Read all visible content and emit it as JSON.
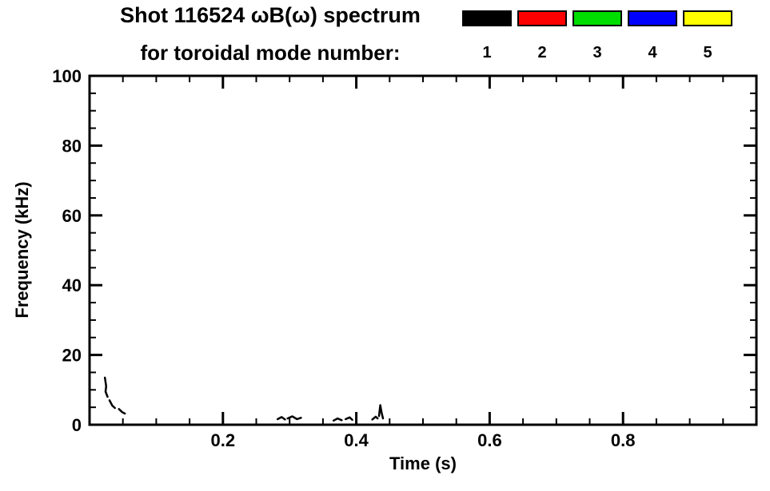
{
  "header": {
    "title": "Shot 116524 ωB(ω) spectrum",
    "subtitle": "for toroidal mode number:"
  },
  "chart_data": {
    "type": "scatter",
    "title": "Shot 116524 ωB(ω) spectrum",
    "subtitle": "for toroidal mode number:",
    "xlabel": "Time (s)",
    "ylabel": "Frequency (kHz)",
    "xlim": [
      0,
      1.0
    ],
    "ylim": [
      0,
      100
    ],
    "grid": false,
    "legend_position": "top",
    "x_ticks": {
      "values": [
        0.2,
        0.4,
        0.6,
        0.8
      ],
      "labels": [
        "0.2",
        "0.4",
        "0.6",
        "0.8"
      ],
      "minor_step": 0.05
    },
    "y_ticks": {
      "values": [
        0,
        20,
        40,
        60,
        80,
        100
      ],
      "labels": [
        "0",
        "20",
        "40",
        "60",
        "80",
        "100"
      ],
      "minor_step": 5
    },
    "series": [
      {
        "name": "1",
        "color": "#000000",
        "segments": [
          {
            "points": [
              [
                0.023,
                13.5
              ],
              [
                0.025,
                11.0
              ],
              [
                0.024,
                9.5
              ],
              [
                0.027,
                8.0
              ]
            ]
          },
          {
            "points": [
              [
                0.03,
                7.0
              ],
              [
                0.034,
                5.5
              ],
              [
                0.038,
                4.8
              ]
            ]
          },
          {
            "points": [
              [
                0.044,
                4.5
              ],
              [
                0.049,
                3.6
              ],
              [
                0.053,
                3.2
              ]
            ]
          },
          {
            "points": [
              [
                0.282,
                1.6
              ],
              [
                0.288,
                2.2
              ],
              [
                0.293,
                1.5
              ]
            ]
          },
          {
            "points": [
              [
                0.297,
                1.8
              ],
              [
                0.304,
                2.4
              ],
              [
                0.311,
                1.6
              ],
              [
                0.317,
                2.0
              ]
            ]
          },
          {
            "points": [
              [
                0.366,
                1.2
              ],
              [
                0.372,
                1.8
              ],
              [
                0.378,
                1.3
              ]
            ]
          },
          {
            "points": [
              [
                0.384,
                1.6
              ],
              [
                0.39,
                2.1
              ],
              [
                0.394,
                1.4
              ]
            ]
          },
          {
            "points": [
              [
                0.424,
                1.5
              ],
              [
                0.429,
                2.3
              ],
              [
                0.432,
                1.8
              ]
            ]
          },
          {
            "points": [
              [
                0.434,
                2.5
              ],
              [
                0.436,
                5.6
              ],
              [
                0.438,
                3.4
              ],
              [
                0.44,
                1.8
              ]
            ]
          }
        ]
      },
      {
        "name": "2",
        "color": "#ff0000",
        "segments": []
      },
      {
        "name": "3",
        "color": "#00dd00",
        "segments": []
      },
      {
        "name": "4",
        "color": "#0000ff",
        "segments": []
      },
      {
        "name": "5",
        "color": "#ffff00",
        "segments": []
      }
    ]
  }
}
